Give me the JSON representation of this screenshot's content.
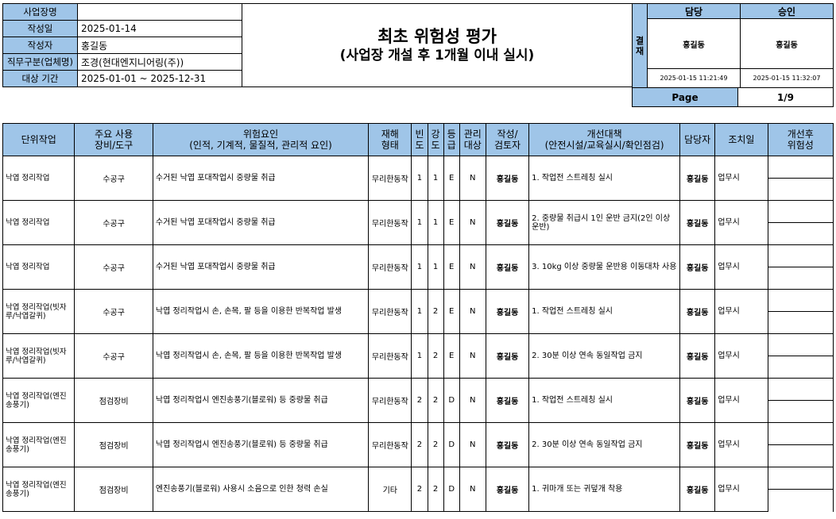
{
  "info": {
    "rows": [
      {
        "label": "사업장명",
        "value": ""
      },
      {
        "label": "작성일",
        "value": "2025-01-14"
      },
      {
        "label": "작성자",
        "value": "홍길동"
      },
      {
        "label": "직무구분(업체명)",
        "value": "조경(현대엔지니어링(주))"
      },
      {
        "label": "대상 기간",
        "value": "2025-01-01 ~ 2025-12-31"
      }
    ]
  },
  "title": {
    "line1": "최초 위험성 평가",
    "line2": "(사업장 개설 후 1개월 이내 실시)"
  },
  "approval": {
    "side_label": "결재",
    "cols": [
      {
        "header": "담당",
        "signer": "홍길동",
        "timestamp": "2025-01-15 11:21:49"
      },
      {
        "header": "승인",
        "signer": "홍길동",
        "timestamp": "2025-01-15 11:32:07"
      }
    ]
  },
  "page": {
    "label": "Page",
    "value": "1/9"
  },
  "table": {
    "headers": {
      "task": "단위작업",
      "equipment": "주요 사용\n장비/도구",
      "hazard": "위험요인\n(인적, 기계적, 물질적, 관리적 요인)",
      "type": "재해\n형태",
      "freq": "빈\n도",
      "sev": "강\n도",
      "grade": "등\n급",
      "managed": "관리\n대상",
      "author": "작성/\n검토자",
      "measure": "개선대책\n(안전시설/교육실시/확인점검)",
      "manager": "담당자",
      "date": "조치일",
      "after": "개선후\n위험성"
    },
    "rows": [
      {
        "task": "낙엽 정리작업",
        "equipment": "수공구",
        "hazard": "수거된 낙엽 포대작업시 중량물 취급",
        "type": "무리한동작",
        "freq": "1",
        "sev": "1",
        "grade": "E",
        "managed": "N",
        "author": "홍길동",
        "measure": "1. 작업전 스트레칭 실시",
        "manager": "홍길동",
        "date": "업무시"
      },
      {
        "task": "낙엽 정리작업",
        "equipment": "수공구",
        "hazard": "수거된 낙엽 포대작업시 중량물 취급",
        "type": "무리한동작",
        "freq": "1",
        "sev": "1",
        "grade": "E",
        "managed": "N",
        "author": "홍길동",
        "measure": "2. 중량물 취급시 1인 운반 금지(2인 이상 운반)",
        "manager": "홍길동",
        "date": "업무시"
      },
      {
        "task": "낙엽 정리작업",
        "equipment": "수공구",
        "hazard": "수거된 낙엽 포대작업시 중량물 취급",
        "type": "무리한동작",
        "freq": "1",
        "sev": "1",
        "grade": "E",
        "managed": "N",
        "author": "홍길동",
        "measure": "3. 10kg 이상 중량물 운반용 이동대차 사용",
        "manager": "홍길동",
        "date": "업무시"
      },
      {
        "task": "낙엽 정리작업(빗자루/낙엽갈퀴)",
        "equipment": "수공구",
        "hazard": "낙엽 정리작업시 손, 손목, 팔 등을 이용한 반복작업 발생",
        "type": "무리한동작",
        "freq": "1",
        "sev": "2",
        "grade": "E",
        "managed": "N",
        "author": "홍길동",
        "measure": "1. 작업전 스트레칭 실시",
        "manager": "홍길동",
        "date": "업무시"
      },
      {
        "task": "낙엽 정리작업(빗자루/낙엽갈퀴)",
        "equipment": "수공구",
        "hazard": "낙엽 정리작업시 손, 손목, 팔 등을 이용한 반복작업 발생",
        "type": "무리한동작",
        "freq": "1",
        "sev": "2",
        "grade": "E",
        "managed": "N",
        "author": "홍길동",
        "measure": "2. 30분 이상 연속 동일작업 금지",
        "manager": "홍길동",
        "date": "업무시"
      },
      {
        "task": "낙엽 정리작업(엔진송풍기)",
        "equipment": "점검장비",
        "hazard": "낙엽 정리작업시 엔진송풍기(블로워) 등 중량물 취급",
        "type": "무리한동작",
        "freq": "2",
        "sev": "2",
        "grade": "D",
        "managed": "N",
        "author": "홍길동",
        "measure": "1. 작업전 스트레칭 실시",
        "manager": "홍길동",
        "date": "업무시"
      },
      {
        "task": "낙엽 정리작업(엔진송풍기)",
        "equipment": "점검장비",
        "hazard": "낙엽 정리작업시 엔진송풍기(블로워) 등 중량물 취급",
        "type": "무리한동작",
        "freq": "2",
        "sev": "2",
        "grade": "D",
        "managed": "N",
        "author": "홍길동",
        "measure": "2. 30분 이상 연속 동일작업 금지",
        "manager": "홍길동",
        "date": "업무시"
      },
      {
        "task": "낙엽 정리작업(엔진송풍기)",
        "equipment": "점검장비",
        "hazard": "엔진송풍기(블로워) 사용시 소음으로 인한 청력 손실",
        "type": "기타",
        "freq": "2",
        "sev": "2",
        "grade": "D",
        "managed": "N",
        "author": "홍길동",
        "measure": "1. 귀마개 또는 귀덮개 착용",
        "manager": "홍길동",
        "date": "업무시"
      }
    ]
  }
}
